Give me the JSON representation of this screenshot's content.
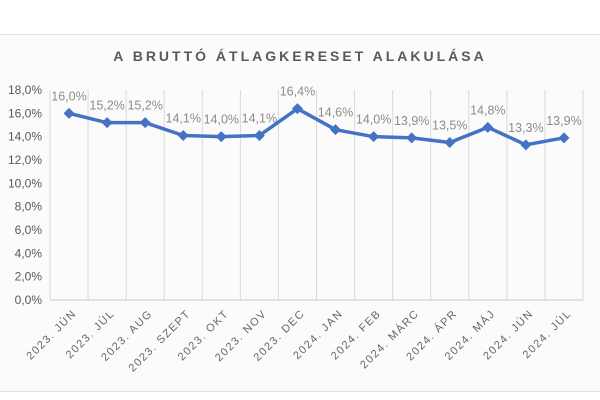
{
  "chart_data": {
    "type": "line",
    "title": "A BRUTTÓ ÁTLAGKERESET ALAKULÁSA",
    "categories": [
      "2023. JÚN",
      "2023. JÚL",
      "2023. AUG",
      "2023. SZEPT",
      "2023. OKT",
      "2023. NOV",
      "2023. DEC",
      "2024. JAN",
      "2024. FEB",
      "2024. MÁRC",
      "2024. ÁPR",
      "2024. MÁJ",
      "2024. JÚN",
      "2024. JÚL"
    ],
    "values": [
      16.0,
      15.2,
      15.2,
      14.1,
      14.0,
      14.1,
      16.4,
      14.6,
      14.0,
      13.9,
      13.5,
      14.8,
      13.3,
      13.9
    ],
    "data_labels": [
      "16,0%",
      "15,2%",
      "15,2%",
      "14,1%",
      "14,0%",
      "14,1%",
      "16,4%",
      "14,6%",
      "14,0%",
      "13,9%",
      "13,5%",
      "14,8%",
      "13,3%",
      "13,9%"
    ],
    "y_ticks": [
      {
        "value": 0,
        "label": "0,0%"
      },
      {
        "value": 2,
        "label": "2,0%"
      },
      {
        "value": 4,
        "label": "4,0%"
      },
      {
        "value": 6,
        "label": "6,0%"
      },
      {
        "value": 8,
        "label": "8,0%"
      },
      {
        "value": 10,
        "label": "10,0%"
      },
      {
        "value": 12,
        "label": "12,0%"
      },
      {
        "value": 14,
        "label": "14,0%"
      },
      {
        "value": 16,
        "label": "16,0%"
      },
      {
        "value": 18,
        "label": "18,0%"
      }
    ],
    "ylim": [
      0,
      18
    ],
    "xlabel": "",
    "ylabel": "",
    "grid": "vertical-only",
    "legend": "none",
    "marker": "diamond",
    "line_color": "#4472C4",
    "gridline_color": "#d9d9d9",
    "axis_line_color": "#c8c8c8",
    "title_color": "#595959",
    "data_label_color": "#8c8c8c",
    "axis_text_color": "#595959"
  }
}
